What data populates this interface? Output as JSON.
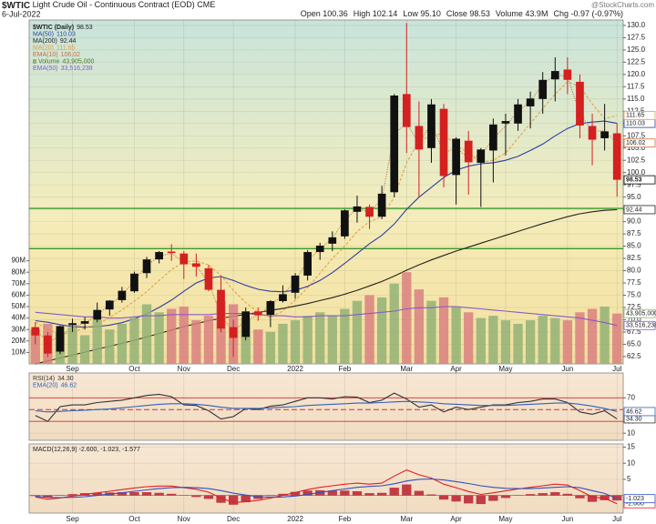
{
  "chart_data": [
    {
      "type": "candlestick",
      "symbol": "$WTIC",
      "title": "Light Crude Oil - Continuous Contract (EOD) CME",
      "date": "6-Jul-2022",
      "stats": [
        "Open 100.36",
        "High 102.14",
        "Low 95.10",
        "Close 98.53",
        "Volume 43.9M",
        "Chg -0.97 (-0.97%)"
      ],
      "watermark": "@StockCharts.com",
      "categories": [
        null,
        null,
        null,
        "Sep",
        null,
        null,
        null,
        null,
        "Oct",
        null,
        null,
        null,
        "Nov",
        null,
        null,
        null,
        "Dec",
        null,
        null,
        null,
        null,
        "2022",
        null,
        null,
        null,
        "Feb",
        null,
        null,
        null,
        null,
        "Mar",
        null,
        null,
        null,
        "Apr",
        null,
        null,
        null,
        "May",
        null,
        null,
        null,
        null,
        "Jun",
        null,
        null,
        null,
        "Jul"
      ],
      "ylim": [
        61,
        131.1
      ],
      "yticks": [
        62.5,
        {
          "value": 65,
          "label": "65.0"
        },
        67.5,
        {
          "value": 70,
          "label": "70.0"
        },
        72.5,
        {
          "value": 75,
          "label": "75.0"
        },
        77.5,
        {
          "value": 80,
          "label": "80.0"
        },
        82.5,
        {
          "value": 85,
          "label": "85.0"
        },
        87.5,
        {
          "value": 90,
          "label": "90.0"
        },
        92.5,
        {
          "value": 95,
          "label": "95.0"
        },
        97.5,
        {
          "value": 100,
          "label": "100.0"
        },
        102.5,
        {
          "value": 105,
          "label": "105.0"
        },
        107.5,
        {
          "value": 110,
          "label": "110.0"
        },
        112.5,
        {
          "value": 115,
          "label": "115.0"
        },
        117.5,
        {
          "value": 120,
          "label": "120.0"
        },
        122.5,
        {
          "value": 125,
          "label": "125.0"
        },
        127.5,
        {
          "value": 130,
          "label": "130.0"
        }
      ],
      "y2lim": [
        0,
        300000000
      ],
      "y2ticks": [
        {
          "value": 10000000,
          "label": "10M"
        },
        {
          "value": 20000000,
          "label": "20M"
        },
        {
          "value": 30000000,
          "label": "30M"
        },
        {
          "value": 40000000,
          "label": "40M"
        },
        {
          "value": 50000000,
          "label": "50M"
        },
        {
          "value": 60000000,
          "label": "60M"
        },
        {
          "value": 70000000,
          "label": "70M"
        },
        {
          "value": 80000000,
          "label": "80M"
        },
        {
          "value": 90000000,
          "label": "90M"
        }
      ],
      "candles": {
        "name": "$WTIC (Daily)",
        "last": 98.53,
        "up_color": "#111111",
        "down_color": "#d42020",
        "open": [
          68.5,
          66.8,
          63.5,
          68.9,
          69.2,
          70.0,
          72.1,
          74.0,
          75.8,
          79.5,
          82.3,
          83.9,
          83.5,
          81.5,
          80.5,
          76.1,
          68.5,
          66.5,
          71.7,
          71.0,
          73.8,
          75.5,
          79.0,
          83.8,
          85.5,
          87.0,
          92.0,
          93.0,
          91.0,
          96.0,
          116.0,
          109.5,
          105.0,
          113.0,
          99.5,
          106.5,
          102.0,
          104.5,
          110.0,
          110.0,
          113.5,
          115.0,
          119.0,
          121.0,
          118.5,
          109.5,
          107.0,
          108.0
        ],
        "high": [
          69.5,
          67.5,
          68.8,
          70.2,
          70.5,
          73.5,
          74.0,
          76.7,
          79.8,
          82.8,
          84.0,
          85.4,
          84.0,
          83.5,
          81.2,
          79.0,
          70.0,
          72.5,
          72.5,
          74.0,
          77.0,
          79.5,
          84.2,
          85.7,
          88.0,
          92.5,
          95.3,
          93.5,
          97.3,
          116.0,
          130.5,
          114.5,
          115.0,
          114.0,
          107.2,
          108.5,
          105.0,
          111.0,
          112.0,
          115.0,
          116.5,
          120.5,
          123.5,
          123.5,
          120.0,
          112.0,
          114.0,
          110.0
        ],
        "low": [
          65.0,
          62.4,
          63.0,
          67.5,
          68.0,
          69.5,
          70.8,
          73.5,
          75.5,
          78.5,
          81.5,
          82.0,
          78.3,
          78.8,
          75.8,
          67.4,
          62.4,
          65.8,
          69.8,
          68.5,
          73.5,
          74.3,
          78.0,
          82.2,
          84.0,
          86.5,
          89.8,
          88.5,
          90.5,
          95.0,
          104.0,
          95.0,
          102.0,
          97.0,
          93.5,
          95.5,
          93.0,
          98.0,
          103.5,
          108.5,
          109.0,
          112.0,
          114.5,
          116.0,
          107.0,
          101.5,
          104.5,
          95.1
        ],
        "close": [
          66.8,
          63.1,
          68.7,
          69.3,
          69.7,
          72.0,
          73.9,
          75.9,
          79.4,
          82.3,
          83.8,
          83.6,
          81.3,
          80.8,
          76.1,
          68.2,
          66.3,
          71.7,
          70.9,
          73.8,
          75.2,
          79.0,
          83.8,
          85.1,
          86.8,
          92.3,
          93.1,
          91.0,
          95.7,
          115.7,
          109.3,
          104.7,
          113.9,
          99.3,
          106.9,
          102.1,
          104.7,
          109.8,
          110.5,
          113.9,
          115.1,
          118.9,
          120.7,
          118.9,
          109.6,
          106.7,
          108.4,
          98.53
        ]
      },
      "series": [
        {
          "name": "MA(50)",
          "color": "#2b3fa0",
          "last": 110.03,
          "values": [
            69.8,
            69.5,
            69.0,
            68.6,
            68.5,
            68.6,
            68.9,
            69.4,
            70.2,
            71.2,
            72.5,
            74.0,
            75.8,
            77.5,
            78.5,
            78.8,
            78.0,
            77.0,
            76.2,
            75.8,
            75.7,
            76.0,
            76.8,
            78.0,
            79.6,
            81.5,
            83.5,
            85.5,
            87.2,
            89.5,
            92.5,
            95.0,
            97.0,
            99.0,
            100.5,
            101.3,
            101.8,
            102.0,
            102.5,
            103.3,
            104.5,
            105.8,
            107.5,
            109.0,
            110.0,
            110.3,
            110.5,
            110.03
          ]
        },
        {
          "name": "MA(200)",
          "color": "#222222",
          "last": 92.44,
          "values": [
            61.0,
            61.6,
            62.2,
            62.8,
            63.4,
            64.0,
            64.6,
            65.2,
            65.8,
            66.5,
            67.2,
            67.9,
            68.6,
            69.2,
            69.8,
            70.3,
            70.7,
            71.1,
            71.5,
            71.9,
            72.3,
            72.8,
            73.3,
            73.9,
            74.5,
            75.2,
            76.0,
            76.9,
            77.8,
            78.9,
            80.1,
            81.2,
            82.2,
            83.1,
            84.0,
            84.8,
            85.6,
            86.4,
            87.2,
            88.0,
            88.8,
            89.6,
            90.3,
            91.0,
            91.6,
            92.0,
            92.3,
            92.44
          ]
        },
        {
          "name": "MA(20)",
          "color": "#e8a040",
          "style": "dash",
          "last": 111.65,
          "values": [
            69.5,
            68.0,
            67.0,
            67.5,
            68.3,
            69.0,
            70.5,
            72.0,
            73.8,
            75.7,
            78.0,
            80.2,
            81.8,
            82.0,
            81.2,
            79.0,
            76.0,
            73.5,
            71.5,
            70.5,
            71.8,
            74.0,
            76.5,
            79.5,
            82.5,
            85.0,
            88.0,
            90.0,
            91.0,
            95.0,
            102.0,
            106.5,
            107.5,
            108.0,
            105.5,
            104.0,
            102.0,
            102.5,
            104.0,
            107.0,
            110.0,
            113.0,
            116.0,
            118.5,
            117.5,
            114.0,
            111.0,
            111.65
          ]
        },
        {
          "name": "EMA(10)",
          "color": "#c0703a",
          "style": "dot",
          "last": 106.02,
          "values": [
            68.0,
            65.5,
            66.5,
            68.5,
            69.3,
            71.0,
            73.0,
            75.0,
            78.0,
            81.0,
            83.0,
            83.5,
            81.8,
            81.0,
            77.5,
            71.0,
            67.5,
            70.0,
            70.8,
            73.0,
            75.0,
            78.0,
            82.0,
            84.5,
            86.5,
            90.5,
            92.5,
            92.0,
            94.5,
            108.0,
            110.0,
            106.0,
            110.0,
            104.0,
            105.0,
            103.0,
            103.5,
            107.0,
            109.5,
            112.5,
            114.5,
            118.0,
            120.0,
            119.5,
            112.0,
            108.5,
            108.5,
            106.02
          ]
        },
        {
          "name": "Volume",
          "type": "bar",
          "axis": "y2",
          "up_color": "#93b276",
          "down_color": "#d98080",
          "last": 43905000,
          "last_label": "43,905,000",
          "values": [
            30000000,
            35000000,
            28000000,
            32000000,
            25000000,
            38000000,
            30000000,
            35000000,
            40000000,
            52000000,
            45000000,
            48000000,
            50000000,
            38000000,
            42000000,
            55000000,
            52000000,
            40000000,
            30000000,
            28000000,
            35000000,
            38000000,
            42000000,
            45000000,
            42000000,
            48000000,
            55000000,
            60000000,
            58000000,
            70000000,
            80000000,
            65000000,
            55000000,
            58000000,
            50000000,
            45000000,
            40000000,
            42000000,
            38000000,
            35000000,
            38000000,
            42000000,
            40000000,
            38000000,
            45000000,
            48000000,
            50000000,
            43905000
          ]
        },
        {
          "name": "EMA(50)",
          "color": "#8a5ac8",
          "axis": "y2",
          "last": 33516238,
          "last_label": "33,516,238",
          "values": [
            45000000,
            44000000,
            43000000,
            42000000,
            41000000,
            41000000,
            40000000,
            40000000,
            41000000,
            42000000,
            42000000,
            43000000,
            43000000,
            43000000,
            43000000,
            44000000,
            44000000,
            44000000,
            43000000,
            42000000,
            42000000,
            41000000,
            41000000,
            42000000,
            42000000,
            42000000,
            43000000,
            44000000,
            45000000,
            46000000,
            48000000,
            49000000,
            49000000,
            50000000,
            50000000,
            49000000,
            48000000,
            47000000,
            46000000,
            45000000,
            44000000,
            43000000,
            42000000,
            41000000,
            40000000,
            38000000,
            36000000,
            33516238
          ]
        }
      ],
      "levels": [
        92.7,
        84.5
      ],
      "level_color": "#3a9a2a"
    },
    {
      "type": "line",
      "ylim": [
        -2,
        112
      ],
      "yticks": [
        10,
        30,
        70
      ],
      "levels": [
        70,
        50,
        30
      ],
      "level_color": "#d43030",
      "series": [
        {
          "name": "RSI(14)",
          "color": "#333333",
          "last": 34.3,
          "last_label": "34.30",
          "values": [
            40,
            30,
            55,
            58,
            58,
            62,
            64,
            66,
            70,
            74,
            76,
            72,
            58,
            57,
            48,
            34,
            38,
            52,
            50,
            56,
            58,
            64,
            70,
            70,
            68,
            72,
            71,
            62,
            66,
            78,
            68,
            54,
            58,
            46,
            54,
            50,
            54,
            58,
            58,
            62,
            64,
            68,
            68,
            62,
            46,
            42,
            48,
            34.3
          ]
        },
        {
          "name": "EMA(20)",
          "color": "#3060c0",
          "last": 46.62,
          "values": [
            48,
            46,
            47,
            48,
            49,
            50,
            51,
            53,
            55,
            57,
            59,
            60,
            60,
            59,
            57,
            54,
            52,
            52,
            52,
            53,
            54,
            55,
            57,
            58,
            59,
            60,
            61,
            61,
            62,
            63,
            64,
            63,
            62,
            60,
            59,
            58,
            57,
            57,
            57,
            58,
            59,
            60,
            61,
            61,
            59,
            56,
            52,
            46.62
          ]
        }
      ]
    },
    {
      "type": "line",
      "legend": "MACD(12,26,9) -2.600, -1.023, -1.577",
      "ylim": [
        -5.5,
        16
      ],
      "yticks": [
        5,
        10,
        15
      ],
      "levels": [
        0
      ],
      "level_color": "#888888",
      "series": [
        {
          "name": "MACD",
          "type": "bar",
          "color": "#b8202f",
          "values": [
            -0.2,
            -0.6,
            -0.1,
            0.4,
            0.7,
            0.8,
            0.9,
            1.0,
            1.0,
            1.0,
            0.8,
            0.5,
            -0.1,
            -0.5,
            -1.1,
            -2.3,
            -2.9,
            -2.1,
            -1.1,
            -0.2,
            0.5,
            1.1,
            1.5,
            1.6,
            1.5,
            1.5,
            1.3,
            0.7,
            0.8,
            2.4,
            3.4,
            1.4,
            0.3,
            -1.3,
            -1.9,
            -2.5,
            -2.7,
            -1.7,
            -0.8,
            -0.1,
            0.4,
            0.7,
            1.0,
            0.5,
            -0.9,
            -2.0,
            -1.5,
            -1.577
          ]
        },
        {
          "name": "MACD",
          "color": "#e02020",
          "last_label": "-2.600",
          "values": [
            -0.5,
            -1.2,
            -0.8,
            -0.2,
            0.3,
            0.8,
            1.3,
            1.8,
            2.3,
            2.7,
            2.9,
            2.9,
            2.4,
            1.9,
            1.0,
            -0.8,
            -2.2,
            -2.0,
            -1.5,
            -0.8,
            0.0,
            0.9,
            1.8,
            2.5,
            3.0,
            3.5,
            3.8,
            3.5,
            3.8,
            6.0,
            7.9,
            6.4,
            5.4,
            3.5,
            2.4,
            1.2,
            0.3,
            0.8,
            1.4,
            2.0,
            2.5,
            3.0,
            3.5,
            3.2,
            1.5,
            -0.5,
            -0.9,
            -2.6
          ]
        },
        {
          "name": "Signal",
          "color": "#3050c0",
          "last_label": "-1.023",
          "values": [
            -0.3,
            -0.6,
            -0.7,
            -0.6,
            -0.4,
            0.0,
            0.4,
            0.8,
            1.3,
            1.7,
            2.1,
            2.4,
            2.5,
            2.4,
            2.1,
            1.5,
            0.7,
            0.1,
            -0.4,
            -0.6,
            -0.5,
            -0.2,
            0.3,
            0.9,
            1.5,
            2.0,
            2.5,
            2.8,
            3.0,
            3.6,
            4.5,
            5.0,
            5.1,
            4.8,
            4.3,
            3.7,
            3.0,
            2.5,
            2.2,
            2.1,
            2.1,
            2.3,
            2.5,
            2.7,
            2.4,
            1.5,
            0.6,
            -1.023
          ]
        }
      ]
    }
  ]
}
